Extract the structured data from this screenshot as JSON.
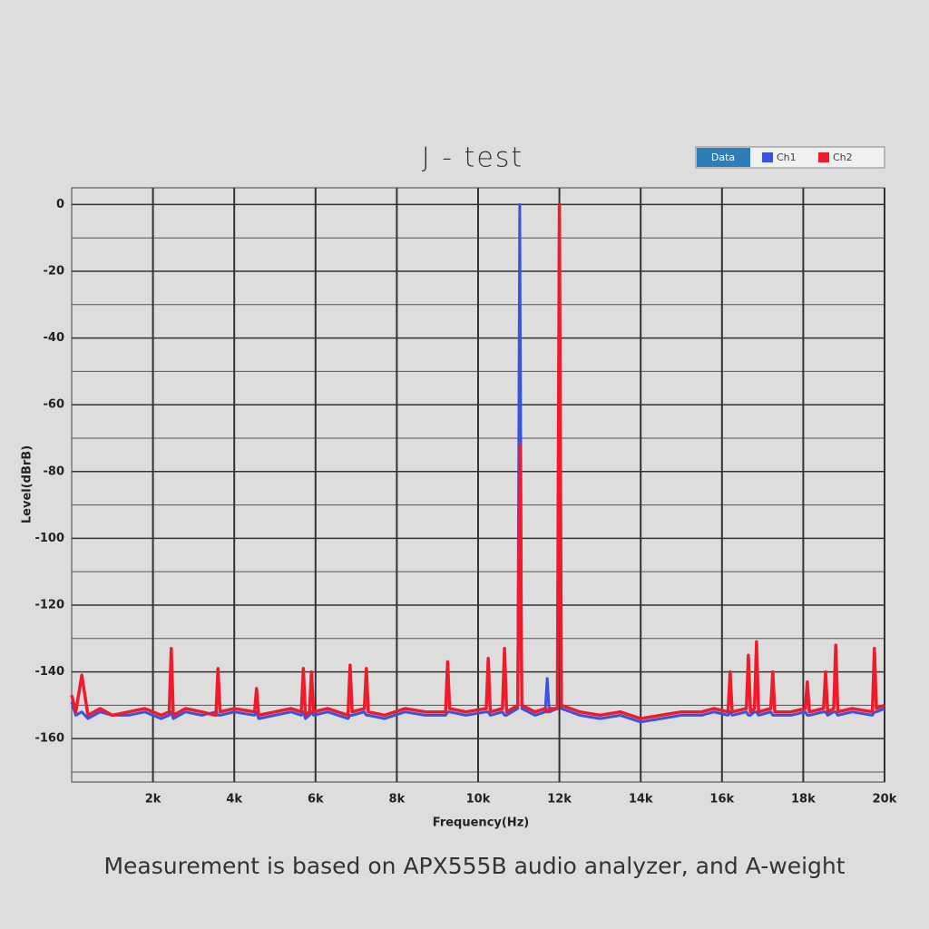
{
  "chart_data": {
    "type": "line",
    "title": "J - test",
    "legend_title": "Data",
    "x_label": "Frequency(Hz)",
    "y_label": "Level(dBrB)",
    "caption": "Measurement is based on APX555B audio analyzer, and A-weight",
    "legend": "top-right",
    "grid": true,
    "xlim": [
      0,
      20000
    ],
    "ylim": [
      -173,
      5
    ],
    "xticks": [
      {
        "value": 2000,
        "label": "2k"
      },
      {
        "value": 4000,
        "label": "4k"
      },
      {
        "value": 6000,
        "label": "6k"
      },
      {
        "value": 8000,
        "label": "8k"
      },
      {
        "value": 10000,
        "label": "10k"
      },
      {
        "value": 12000,
        "label": "12k"
      },
      {
        "value": 14000,
        "label": "14k"
      },
      {
        "value": 16000,
        "label": "16k"
      },
      {
        "value": 18000,
        "label": "18k"
      },
      {
        "value": 20000,
        "label": "20k"
      }
    ],
    "yticks": [
      0,
      -20,
      -40,
      -60,
      -80,
      -100,
      -120,
      -140,
      -160
    ],
    "y_minor_ticks": [
      -10,
      -30,
      -50,
      -70,
      -90,
      -110,
      -130,
      -150,
      -170
    ],
    "x": [
      0,
      100,
      250,
      400,
      700,
      1000,
      1400,
      1800,
      2200,
      2400,
      2450,
      2500,
      2800,
      3200,
      3550,
      3600,
      3650,
      4000,
      4500,
      4550,
      4600,
      5000,
      5400,
      5650,
      5700,
      5750,
      5850,
      5900,
      5950,
      6300,
      6800,
      6850,
      6900,
      7200,
      7250,
      7300,
      7700,
      8200,
      8700,
      9200,
      9250,
      9300,
      9700,
      10200,
      10250,
      10300,
      10600,
      10650,
      10700,
      10975,
      11025,
      11075,
      11400,
      11650,
      11700,
      11750,
      11950,
      12000,
      12050,
      12500,
      13000,
      13500,
      14000,
      14500,
      15000,
      15500,
      15800,
      16150,
      16200,
      16250,
      16600,
      16650,
      16700,
      16800,
      16850,
      16900,
      17200,
      17250,
      17300,
      17700,
      18050,
      18100,
      18150,
      18500,
      18550,
      18600,
      18750,
      18800,
      18850,
      19200,
      19700,
      19750,
      19800,
      20000
    ],
    "series": [
      {
        "name": "Ch1",
        "color": "#3a52e0",
        "values": [
          -149,
          -153,
          -152,
          -154,
          -152,
          -153,
          -153,
          -152,
          -154,
          -153,
          -152,
          -154,
          -152,
          -153,
          -152,
          -153,
          -153,
          -152,
          -153,
          -152,
          -154,
          -153,
          -152,
          -153,
          -152,
          -154,
          -153,
          -152,
          -153,
          -152,
          -154,
          -153,
          -153,
          -152,
          -153,
          -153,
          -154,
          -152,
          -153,
          -153,
          -152,
          -152,
          -153,
          -152,
          -152,
          -153,
          -152,
          -153,
          -153,
          -151,
          0,
          -151,
          -153,
          -152,
          -142,
          -152,
          -151,
          0,
          -151,
          -153,
          -154,
          -153,
          -155,
          -154,
          -153,
          -153,
          -152,
          -153,
          -152,
          -153,
          -152,
          -153,
          -153,
          -152,
          -152,
          -153,
          -152,
          -153,
          -153,
          -153,
          -152,
          -153,
          -153,
          -152,
          -152,
          -153,
          -152,
          -152,
          -153,
          -152,
          -153,
          -152,
          -152,
          -151
        ]
      },
      {
        "name": "Ch2",
        "color": "#f01a2a",
        "values": [
          -147,
          -152,
          -141,
          -153,
          -151,
          -153,
          -152,
          -151,
          -153,
          -152,
          -133,
          -153,
          -151,
          -152,
          -153,
          -139,
          -152,
          -151,
          -152,
          -145,
          -153,
          -152,
          -151,
          -152,
          -139,
          -153,
          -152,
          -140,
          -152,
          -151,
          -153,
          -138,
          -152,
          -151,
          -139,
          -152,
          -153,
          -151,
          -152,
          -152,
          -137,
          -151,
          -152,
          -151,
          -136,
          -152,
          -151,
          -133,
          -152,
          -150,
          -72,
          -150,
          -152,
          -151,
          -152,
          -151,
          -151,
          0,
          -150,
          -152,
          -153,
          -152,
          -154,
          -153,
          -152,
          -152,
          -151,
          -152,
          -140,
          -152,
          -151,
          -135,
          -152,
          -151,
          -131,
          -152,
          -151,
          -140,
          -152,
          -152,
          -151,
          -143,
          -152,
          -151,
          -140,
          -152,
          -151,
          -132,
          -152,
          -151,
          -152,
          -133,
          -151,
          -150
        ]
      }
    ]
  }
}
